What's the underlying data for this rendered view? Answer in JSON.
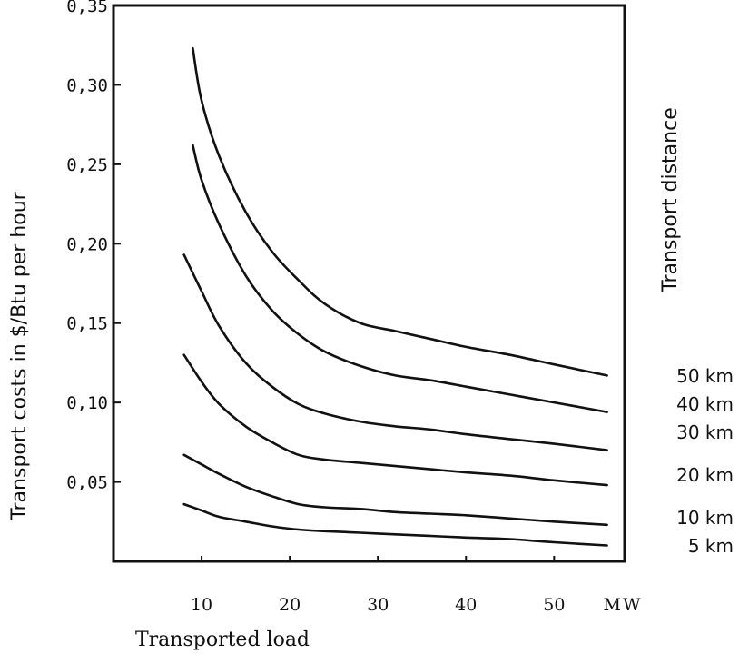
{
  "chart_data": {
    "type": "line",
    "xlabel": "Transported load",
    "x_unit": "MW",
    "ylabel": "Transport costs in $/Btu per hour",
    "right_label": "Transport distance",
    "xlim": [
      0,
      58
    ],
    "ylim": [
      0,
      0.35
    ],
    "xticks": [
      10,
      20,
      30,
      40,
      50
    ],
    "xtick_labels": [
      "10",
      "20",
      "30",
      "40",
      "50"
    ],
    "yticks": [
      0.05,
      0.1,
      0.15,
      0.2,
      0.25,
      0.3,
      0.35
    ],
    "ytick_labels": [
      "0,05",
      "0,10",
      "0,15",
      "0,20",
      "0,25",
      "0,30",
      "0,35"
    ],
    "grid": false,
    "series": [
      {
        "name": "50 km",
        "points": [
          [
            9,
            0.323
          ],
          [
            10,
            0.29
          ],
          [
            12,
            0.255
          ],
          [
            15,
            0.22
          ],
          [
            18,
            0.195
          ],
          [
            21,
            0.177
          ],
          [
            24,
            0.162
          ],
          [
            28,
            0.15
          ],
          [
            32,
            0.145
          ],
          [
            36,
            0.14
          ],
          [
            40,
            0.135
          ],
          [
            45,
            0.13
          ],
          [
            50,
            0.124
          ],
          [
            56,
            0.117
          ]
        ]
      },
      {
        "name": "40 km",
        "points": [
          [
            9,
            0.262
          ],
          [
            10,
            0.24
          ],
          [
            12,
            0.212
          ],
          [
            15,
            0.18
          ],
          [
            18,
            0.158
          ],
          [
            21,
            0.143
          ],
          [
            24,
            0.132
          ],
          [
            28,
            0.123
          ],
          [
            32,
            0.117
          ],
          [
            36,
            0.114
          ],
          [
            40,
            0.11
          ],
          [
            45,
            0.105
          ],
          [
            50,
            0.1
          ],
          [
            56,
            0.094
          ]
        ]
      },
      {
        "name": "30 km",
        "points": [
          [
            8,
            0.193
          ],
          [
            10,
            0.17
          ],
          [
            12,
            0.148
          ],
          [
            15,
            0.125
          ],
          [
            18,
            0.11
          ],
          [
            21,
            0.099
          ],
          [
            24,
            0.093
          ],
          [
            28,
            0.088
          ],
          [
            32,
            0.085
          ],
          [
            36,
            0.083
          ],
          [
            40,
            0.08
          ],
          [
            45,
            0.077
          ],
          [
            50,
            0.074
          ],
          [
            56,
            0.07
          ]
        ]
      },
      {
        "name": "20 km",
        "points": [
          [
            8,
            0.13
          ],
          [
            10,
            0.113
          ],
          [
            12,
            0.099
          ],
          [
            15,
            0.085
          ],
          [
            18,
            0.075
          ],
          [
            21,
            0.067
          ],
          [
            24,
            0.064
          ],
          [
            28,
            0.062
          ],
          [
            32,
            0.06
          ],
          [
            36,
            0.058
          ],
          [
            40,
            0.056
          ],
          [
            45,
            0.054
          ],
          [
            50,
            0.051
          ],
          [
            56,
            0.048
          ]
        ]
      },
      {
        "name": "10 km",
        "points": [
          [
            8,
            0.067
          ],
          [
            10,
            0.061
          ],
          [
            12,
            0.055
          ],
          [
            15,
            0.047
          ],
          [
            18,
            0.041
          ],
          [
            21,
            0.036
          ],
          [
            24,
            0.034
          ],
          [
            28,
            0.033
          ],
          [
            32,
            0.031
          ],
          [
            36,
            0.03
          ],
          [
            40,
            0.029
          ],
          [
            45,
            0.027
          ],
          [
            50,
            0.025
          ],
          [
            56,
            0.023
          ]
        ]
      },
      {
        "name": "5 km",
        "points": [
          [
            8,
            0.036
          ],
          [
            10,
            0.032
          ],
          [
            12,
            0.028
          ],
          [
            15,
            0.025
          ],
          [
            18,
            0.022
          ],
          [
            21,
            0.02
          ],
          [
            24,
            0.019
          ],
          [
            28,
            0.018
          ],
          [
            32,
            0.017
          ],
          [
            36,
            0.016
          ],
          [
            40,
            0.015
          ],
          [
            45,
            0.014
          ],
          [
            50,
            0.012
          ],
          [
            56,
            0.01
          ]
        ]
      }
    ]
  }
}
